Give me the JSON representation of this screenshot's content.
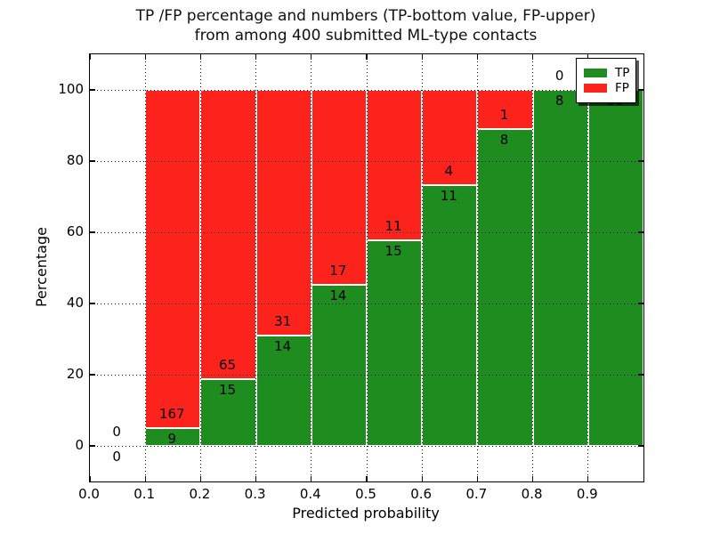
{
  "title": {
    "line1": "TP /FP percentage and numbers (TP-bottom value, FP-upper)",
    "line2": "from among 400 submitted ML-type contacts"
  },
  "axes": {
    "xlabel": "Predicted probability",
    "ylabel": "Percentage",
    "x_ticks": [
      {
        "label": "0.0",
        "value": 0.0
      },
      {
        "label": "0.1",
        "value": 0.1
      },
      {
        "label": "0.2",
        "value": 0.2
      },
      {
        "label": "0.3",
        "value": 0.3
      },
      {
        "label": "0.4",
        "value": 0.4
      },
      {
        "label": "0.5",
        "value": 0.5
      },
      {
        "label": "0.6",
        "value": 0.6
      },
      {
        "label": "0.7",
        "value": 0.7
      },
      {
        "label": "0.8",
        "value": 0.8
      },
      {
        "label": "0.9",
        "value": 0.9
      }
    ],
    "y_ticks": [
      {
        "label": "0",
        "value": 0
      },
      {
        "label": "20",
        "value": 20
      },
      {
        "label": "40",
        "value": 40
      },
      {
        "label": "60",
        "value": 60
      },
      {
        "label": "80",
        "value": 80
      },
      {
        "label": "100",
        "value": 100
      }
    ],
    "xlim": [
      0.0,
      1.0
    ],
    "ylim": [
      -10,
      110
    ],
    "grid": "dotted black, on"
  },
  "legend": {
    "position": "upper right",
    "items": [
      {
        "label": "TP",
        "color": "#1e8c1e"
      },
      {
        "label": "FP",
        "color": "#fb231c"
      }
    ]
  },
  "chart_data": {
    "type": "bar",
    "stacked": true,
    "orientation": "vertical",
    "bin_width": 0.1,
    "x_bins": [
      "0.0-0.1",
      "0.1-0.2",
      "0.2-0.3",
      "0.3-0.4",
      "0.4-0.5",
      "0.5-0.6",
      "0.6-0.7",
      "0.7-0.8",
      "0.8-0.9",
      "0.9-1.0"
    ],
    "series": [
      {
        "name": "TP",
        "color": "#1e8c1e",
        "counts": [
          0,
          9,
          15,
          14,
          14,
          15,
          11,
          8,
          8,
          10
        ]
      },
      {
        "name": "FP",
        "color": "#fb231c",
        "counts": [
          0,
          167,
          65,
          31,
          17,
          11,
          4,
          1,
          0,
          0
        ]
      }
    ],
    "tp_percent": [
      null,
      5.1,
      18.8,
      31.1,
      45.2,
      57.7,
      73.3,
      88.9,
      100,
      100
    ],
    "total_contacts": 400,
    "note": "Bars show TP (green, bottom) and FP (red, top) as percentages summing to 100% per bin; numeric labels are raw counts (TP below segment top, FP above)."
  },
  "colors": {
    "tp": "#1e8c1e",
    "fp": "#fb231c",
    "background": "#ffffff",
    "grid": "#000000",
    "bar_edge": "#ffffff",
    "text": "#000000"
  }
}
